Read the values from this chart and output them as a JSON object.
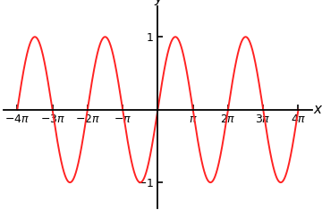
{
  "title": "",
  "xlabel": "x",
  "ylabel": "y",
  "line_color": "#ff2222",
  "line_width": 1.4,
  "xtick_multiples": [
    -4,
    -3,
    -2,
    -1,
    1,
    2,
    3,
    4
  ],
  "yticks": [
    -1,
    1
  ],
  "xlim_mult": [
    -4.4,
    4.4
  ],
  "ylim": [
    -1.35,
    1.42
  ],
  "background_color": "#ffffff",
  "tick_fontsize": 9,
  "label_fontsize": 11
}
